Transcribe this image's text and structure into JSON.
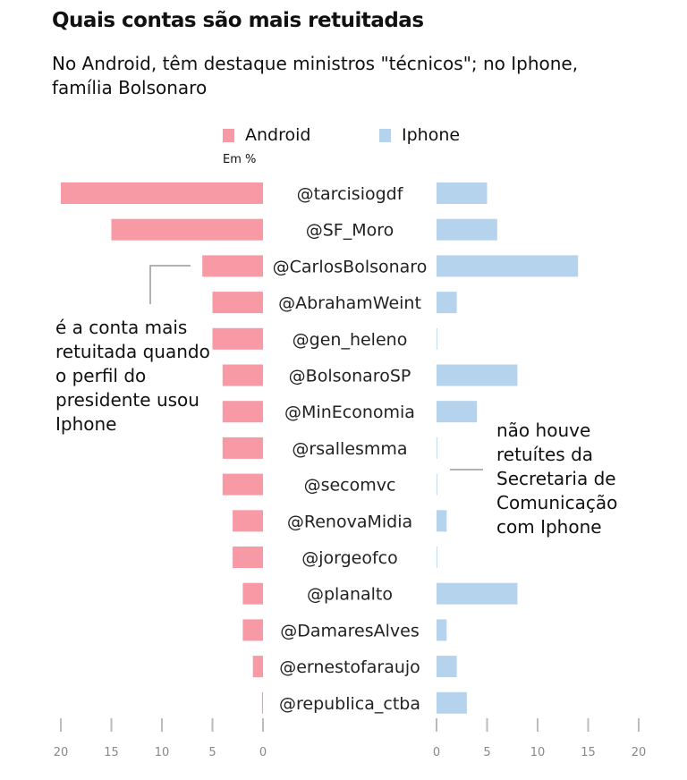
{
  "title": "Quais contas são mais retuitadas",
  "subtitle": "No Android, têm destaque ministros \"técnicos\"; no Iphone, família Bolsonaro",
  "annotations": {
    "left": "é a conta mais retuitada quando o perfil do presidente usou Iphone",
    "right": "não houve retuítes da Secretaria de Comunicação com Iphone"
  },
  "chart_data": {
    "type": "bar",
    "orientation": "horizontal-butterfly",
    "unit": "Em %",
    "categories": [
      "@tarcisiogdf",
      "@SF_Moro",
      "@CarlosBolsonaro",
      "@AbrahamWeint",
      "@gen_heleno",
      "@BolsonaroSP",
      "@MinEconomia",
      "@rsallesmma",
      "@secomvc",
      "@RenovaMidia",
      "@jorgeofco",
      "@planalto",
      "@DamaresAlves",
      "@ernestofaraujo",
      "@republica_ctba"
    ],
    "series": [
      {
        "name": "Android",
        "color": "#f79aa6",
        "values": [
          20,
          15,
          6,
          5,
          5,
          4,
          4,
          4,
          4,
          3,
          3,
          2,
          2,
          1,
          0.1
        ]
      },
      {
        "name": "Iphone",
        "color": "#b6d3ee",
        "values": [
          5,
          6,
          14,
          2,
          0,
          8,
          4,
          0,
          0,
          1,
          0,
          8,
          1,
          2,
          3
        ]
      }
    ],
    "xlim": [
      0,
      20
    ],
    "ticks": [
      "20",
      "15",
      "10",
      "5",
      "0"
    ],
    "ticks_right": [
      "0",
      "5",
      "10",
      "15",
      "20"
    ],
    "grid": false,
    "legend": "top"
  }
}
